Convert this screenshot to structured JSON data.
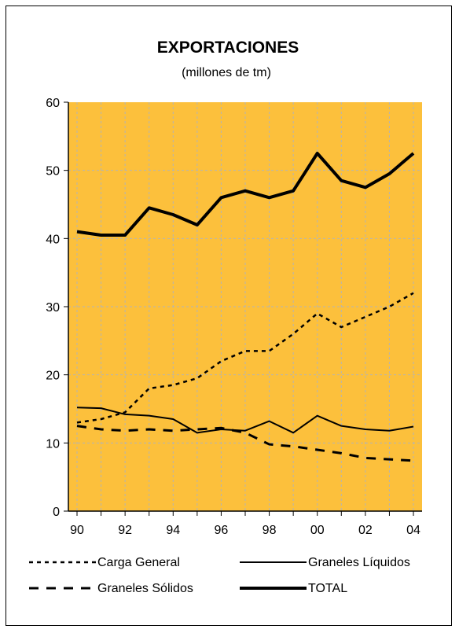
{
  "chart_data": {
    "type": "line",
    "title": "EXPORTACIONES",
    "subtitle": "(millones de tm)",
    "xlabel": "",
    "ylabel": "",
    "x": [
      1990,
      1991,
      1992,
      1993,
      1994,
      1995,
      1996,
      1997,
      1998,
      1999,
      2000,
      2001,
      2002,
      2003,
      2004
    ],
    "x_tick_labels": [
      "90",
      "92",
      "94",
      "96",
      "98",
      "00",
      "02",
      "04"
    ],
    "x_tick_values": [
      1990,
      1992,
      1994,
      1996,
      1998,
      2000,
      2002,
      2004
    ],
    "y_tick_labels": [
      "0",
      "10",
      "20",
      "30",
      "40",
      "50",
      "60"
    ],
    "ylim": [
      0,
      60
    ],
    "grid": true,
    "legend_position": "bottom",
    "colors": {
      "plot_background": "#fcc03c",
      "grid": "#b4b4b4",
      "line": "#000000"
    },
    "series": [
      {
        "name": "Carga General",
        "style": "dotted",
        "values": [
          13.0,
          13.5,
          14.5,
          18.0,
          18.5,
          19.5,
          22.0,
          23.5,
          23.5,
          26.0,
          29.0,
          27.0,
          28.5,
          30.0,
          32.0
        ]
      },
      {
        "name": "Graneles Líquidos",
        "style": "solid",
        "values": [
          15.2,
          15.1,
          14.2,
          14.0,
          13.5,
          11.5,
          12.0,
          11.8,
          13.2,
          11.5,
          14.0,
          12.5,
          12.0,
          11.8,
          12.4
        ]
      },
      {
        "name": "Graneles Sólidos",
        "style": "dashed",
        "values": [
          12.5,
          12.0,
          11.8,
          12.0,
          11.8,
          12.0,
          12.2,
          11.5,
          9.8,
          9.5,
          9.0,
          8.5,
          7.8,
          7.6,
          7.4
        ]
      },
      {
        "name": "TOTAL",
        "style": "bold",
        "values": [
          41.0,
          40.5,
          40.5,
          44.5,
          43.5,
          42.0,
          46.0,
          47.0,
          46.0,
          47.0,
          52.5,
          48.5,
          47.5,
          49.5,
          52.5
        ]
      }
    ]
  }
}
